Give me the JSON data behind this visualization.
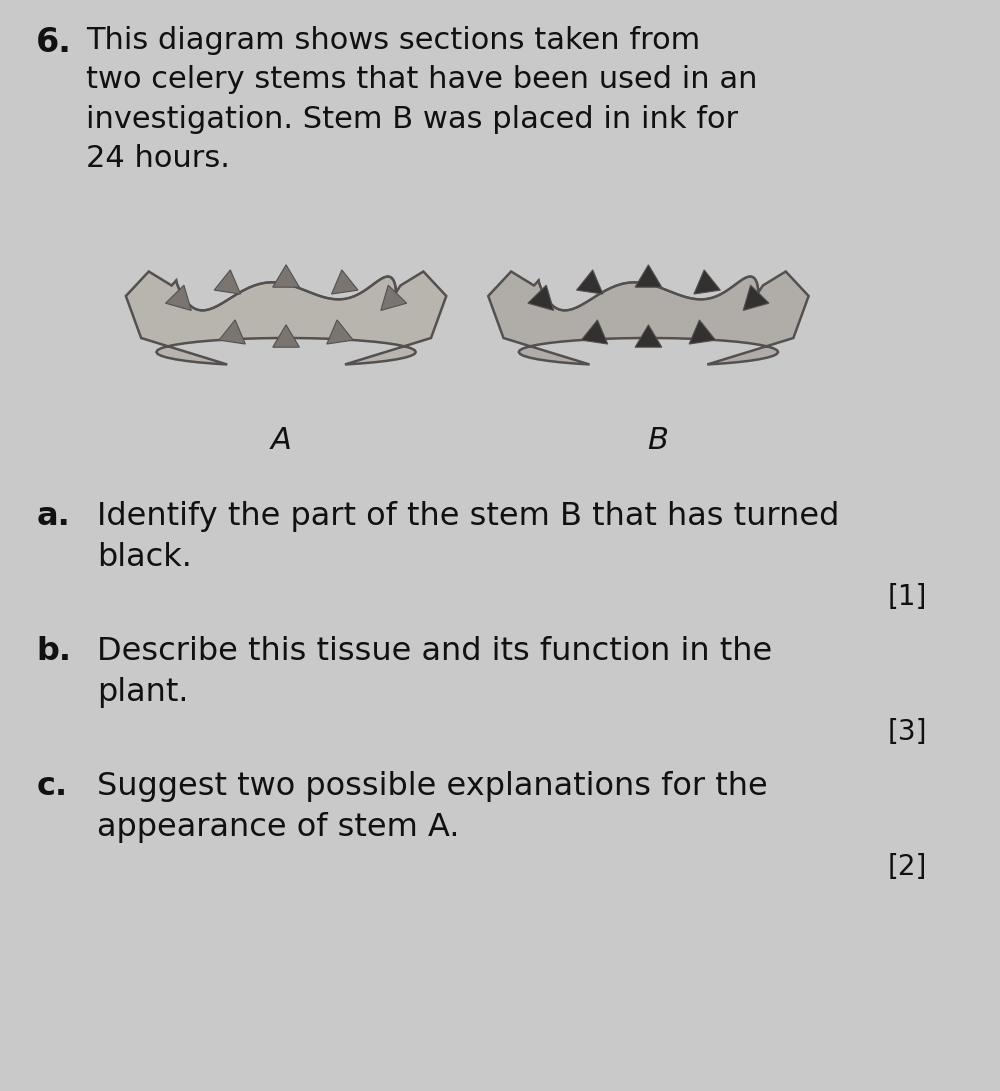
{
  "bg_color": "#c9c9c9",
  "title_number": "6.",
  "title_text": "This diagram shows sections taken from\ntwo celery stems that have been used in an\ninvestigation. Stem B was placed in ink for\n24 hours.",
  "title_fontsize": 24,
  "question_fontsize": 24,
  "label_fontsize": 22,
  "mark_fontsize": 22,
  "stem_A_label": "A",
  "stem_B_label": "B",
  "qa": "a.",
  "qa_text": "Identify the part of the stem B that has turned\nblack.",
  "qa_mark": "[1]",
  "qb": "b.",
  "qb_text": "Describe this tissue and its function in the\nplant.",
  "qb_mark": "[3]",
  "qc": "c.",
  "qc_text": "Suggest two possible explanations for the\nappearance of stem A.",
  "qc_mark": "[2]",
  "stem_body_color_A": "#b8b4ae",
  "stem_body_color_B": "#b0ada8",
  "stem_edge_color": "#555050",
  "bundle_color_A": "#7a7570",
  "bundle_color_B": "#333030"
}
